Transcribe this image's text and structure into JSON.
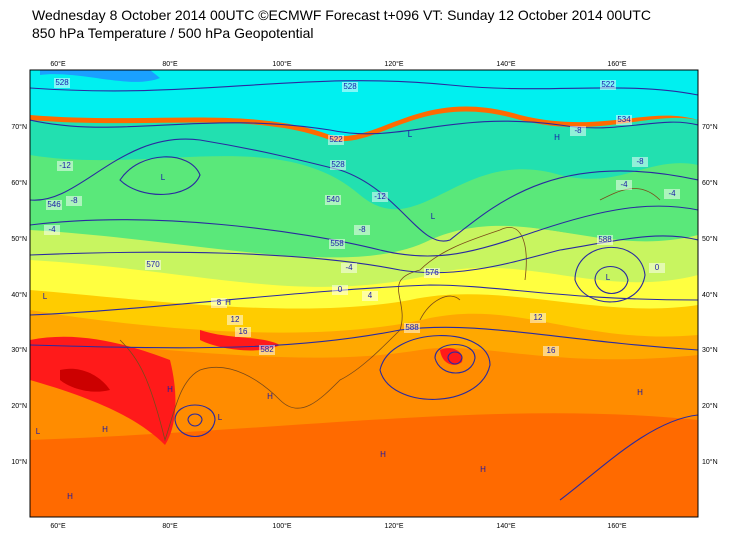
{
  "header": {
    "line1": "Wednesday 8 October 2014 00UTC ©ECMWF Forecast t+096 VT: Sunday 12 October 2014 00UTC",
    "line2": "850 hPa Temperature / 500 hPa Geopotential"
  },
  "map": {
    "longitude_labels": [
      "60°E",
      "80°E",
      "100°E",
      "120°E",
      "140°E",
      "160°E"
    ],
    "latitude_labels": [
      "70°N",
      "60°N",
      "50°N",
      "40°N",
      "30°N",
      "20°N",
      "10°N"
    ],
    "contour_labels": [
      "528",
      "522",
      "528",
      "534",
      "522",
      "528",
      "546",
      "540",
      "558",
      "570",
      "576",
      "588",
      "582",
      "588",
      "-12",
      "-8",
      "-4",
      "-8",
      "-8",
      "-4",
      "-4",
      "0",
      "0",
      "4",
      "8",
      "12",
      "16",
      "16",
      "-12",
      "-8",
      "-4",
      "12"
    ],
    "pressure_centers": [
      "L",
      "L",
      "L",
      "L",
      "L",
      "H",
      "H",
      "H",
      "H",
      "H",
      "L",
      "H",
      "H",
      "H",
      "H",
      "L"
    ]
  }
}
